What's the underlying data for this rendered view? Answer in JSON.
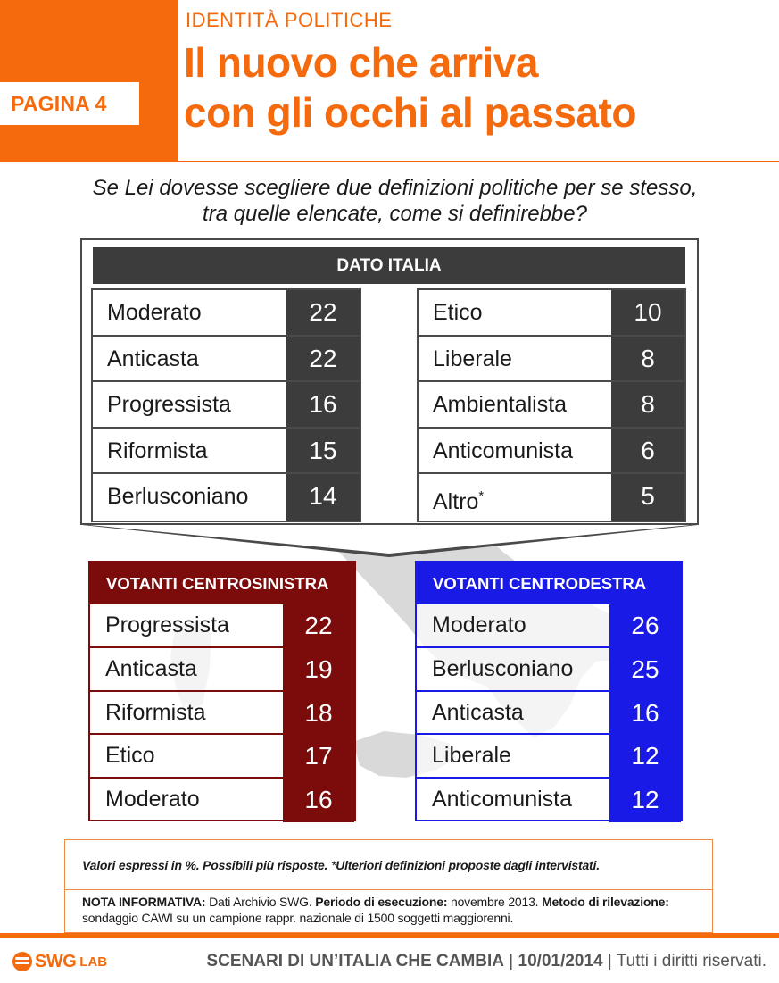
{
  "header": {
    "page_tag": "PAGINA 4",
    "section": "IDENTITÀ POLITICHE",
    "title_line1": "Il nuovo che arriva",
    "title_line2": "con gli occhi al passato"
  },
  "question": {
    "line1": "Se Lei dovesse scegliere due definizioni politiche per se stesso,",
    "line2": "tra quelle elencate, come si definirebbe?"
  },
  "dato_italia": {
    "title": "DATO ITALIA",
    "left": [
      {
        "label": "Moderato",
        "value": "22"
      },
      {
        "label": "Anticasta",
        "value": "22"
      },
      {
        "label": "Progressista",
        "value": "16"
      },
      {
        "label": "Riformista",
        "value": "15"
      },
      {
        "label": "Berlusconiano",
        "value": "14"
      }
    ],
    "right": [
      {
        "label": "Etico",
        "value": "10"
      },
      {
        "label": "Liberale",
        "value": "8"
      },
      {
        "label": "Ambientalista",
        "value": "8"
      },
      {
        "label": "Anticomunista",
        "value": "6"
      },
      {
        "label": "Altro",
        "marker": "*",
        "value": "5"
      }
    ]
  },
  "centrosinistra": {
    "title": "VOTANTI CENTROSINISTRA",
    "color": "#7c0b0b",
    "rows": [
      {
        "label": "Progressista",
        "value": "22"
      },
      {
        "label": "Anticasta",
        "value": "19"
      },
      {
        "label": "Riformista",
        "value": "18"
      },
      {
        "label": "Etico",
        "value": "17"
      },
      {
        "label": "Moderato",
        "value": "16"
      }
    ]
  },
  "centrodestra": {
    "title": "VOTANTI CENTRODESTRA",
    "color": "#1a1ae6",
    "rows": [
      {
        "label": "Moderato",
        "value": "26"
      },
      {
        "label": "Berlusconiano",
        "value": "25"
      },
      {
        "label": "Anticasta",
        "value": "16"
      },
      {
        "label": "Liberale",
        "value": "12"
      },
      {
        "label": "Anticomunista",
        "value": "12"
      }
    ]
  },
  "notes": {
    "values_bold": "Valori espressi in %. Possibili più risposte. ",
    "values_marker": "*",
    "values_rest": "Ulteriori definizioni proposte dagli intervistati.",
    "info_label1": "NOTA INFORMATIVA:",
    "info_text1": " Dati Archivio SWG. ",
    "info_label2": "Periodo di esecuzione:",
    "info_text2": " novembre 2013. ",
    "info_label3": "Metodo di rilevazione:",
    "info_text3": " sondaggio CAWI su un campione rappr. nazionale di 1500 soggetti maggiorenni."
  },
  "footer": {
    "logo_main": "SWG",
    "logo_sub": "LAB",
    "series": "SCENARI DI UN’ITALIA CHE CAMBIA",
    "date": "10/01/2014",
    "rights": "Tutti i diritti riservati."
  },
  "colors": {
    "brand_orange": "#f46a0c",
    "dark_grey": "#3c3c3c",
    "left_red": "#7c0b0b",
    "right_blue": "#1a1ae6"
  }
}
